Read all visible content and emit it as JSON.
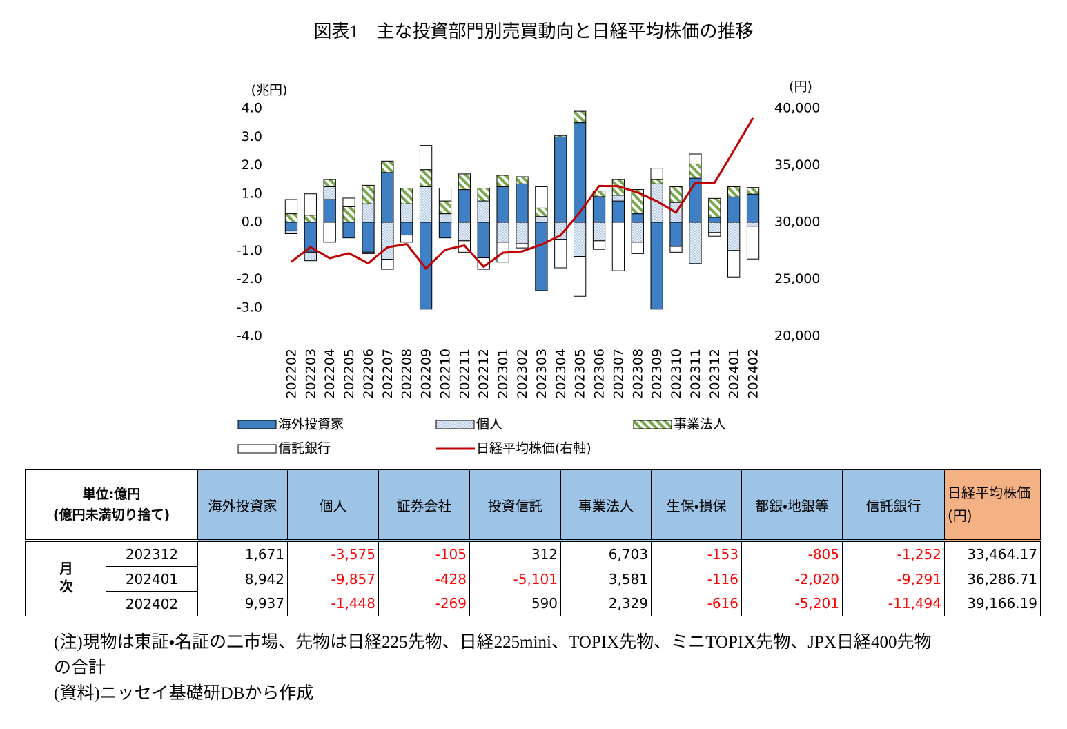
{
  "chart_data": {
    "type": "bar",
    "stacked": true,
    "title": "図表1　主な投資部門別売買動向と日経平均株価の推移",
    "y_label": "(兆円)",
    "y2_label": "(円)",
    "categories": [
      "202202",
      "202203",
      "202204",
      "202205",
      "202206",
      "202207",
      "202208",
      "202209",
      "202210",
      "202211",
      "202212",
      "202301",
      "202302",
      "202303",
      "202304",
      "202305",
      "202306",
      "202307",
      "202308",
      "202309",
      "202310",
      "202311",
      "202312",
      "202401",
      "202402"
    ],
    "series": [
      {
        "name": "海外投資家",
        "color": "#3f7fc4",
        "pattern": "solid",
        "values": [
          -0.3,
          -1.05,
          0.8,
          -0.55,
          -1.05,
          1.75,
          -0.45,
          -3.05,
          -0.55,
          1.15,
          -1.25,
          1.25,
          1.35,
          -2.4,
          3.0,
          3.5,
          0.9,
          0.75,
          0.3,
          -3.05,
          -0.85,
          1.55,
          0.17,
          0.89,
          0.99
        ]
      },
      {
        "name": "個人",
        "color": "#7fa7d6",
        "pattern": "dots",
        "values": [
          -0.1,
          -0.3,
          0.45,
          0.0,
          0.65,
          -1.3,
          0.65,
          1.25,
          0.3,
          -0.65,
          0.75,
          -0.7,
          -0.75,
          0.2,
          -0.6,
          -1.2,
          -0.65,
          0.2,
          -0.7,
          1.35,
          0.7,
          -1.45,
          -0.36,
          -0.99,
          -0.14
        ]
      },
      {
        "name": "事業法人",
        "color": "#77a849",
        "pattern": "hatch",
        "values": [
          0.3,
          0.25,
          0.25,
          0.55,
          0.65,
          0.4,
          0.55,
          0.6,
          0.45,
          0.55,
          0.45,
          0.4,
          0.25,
          0.3,
          0.05,
          0.4,
          0.2,
          0.55,
          0.85,
          0.15,
          0.55,
          0.5,
          0.67,
          0.36,
          0.23
        ]
      },
      {
        "name": "信託銀行",
        "color": "#ffffff",
        "pattern": "solid",
        "values": [
          0.5,
          0.75,
          -0.7,
          0.3,
          -0.05,
          -0.35,
          -0.25,
          0.85,
          0.45,
          -0.4,
          -0.4,
          -0.7,
          -0.15,
          0.75,
          -1.0,
          -1.4,
          -0.3,
          -1.7,
          -0.4,
          0.4,
          -0.2,
          0.35,
          -0.13,
          -0.93,
          -1.15
        ]
      },
      {
        "name": "日経平均株価(右軸)",
        "color": "#c00000",
        "type": "line",
        "axis": "y2",
        "values": [
          26527,
          27821,
          26848,
          27280,
          26393,
          27802,
          28092,
          25937,
          27587,
          27969,
          26095,
          27327,
          27446,
          28041,
          28856,
          30888,
          33189,
          33172,
          32619,
          31858,
          30859,
          33487,
          33464.17,
          36286.71,
          39166.19
        ]
      }
    ],
    "ylim": [
      -4,
      4
    ],
    "yticks": [
      {
        "value": -4,
        "label": "-4.0"
      },
      {
        "value": -3,
        "label": "-3.0"
      },
      {
        "value": -2,
        "label": "-2.0"
      },
      {
        "value": -1,
        "label": "-1.0"
      },
      {
        "value": 0,
        "label": "0.0"
      },
      {
        "value": 1,
        "label": "1.0"
      },
      {
        "value": 2,
        "label": "2.0"
      },
      {
        "value": 3,
        "label": "3.0"
      },
      {
        "value": 4,
        "label": "4.0"
      }
    ],
    "y2lim": [
      20000,
      40000
    ],
    "y2ticks": [
      {
        "value": 20000,
        "label": "20,000"
      },
      {
        "value": 25000,
        "label": "25,000"
      },
      {
        "value": 30000,
        "label": "30,000"
      },
      {
        "value": 35000,
        "label": "35,000"
      },
      {
        "value": 40000,
        "label": "40,000"
      }
    ],
    "grid": false
  },
  "table": {
    "corner": [
      "単位:億円",
      "(億円未満切り捨て)"
    ],
    "header": [
      "海外投資家",
      "個人",
      "証券会社",
      "投資信託",
      "事業法人",
      "生保・損保",
      "都銀・地銀等",
      "信託銀行",
      "日経平均株価(円)"
    ],
    "row_group": "月次",
    "rows": [
      [
        "202312",
        "1,671",
        "-3,575",
        "-105",
        "312",
        "6,703",
        "-153",
        "-805",
        "-1,252",
        "33,464.17"
      ],
      [
        "202401",
        "8,942",
        "-9,857",
        "-428",
        "-5,101",
        "3,581",
        "-116",
        "-2,020",
        "-9,291",
        "36,286.71"
      ],
      [
        "202402",
        "9,937",
        "-1,448",
        "-269",
        "590",
        "2,329",
        "-616",
        "-5,201",
        "-11,494",
        "39,166.19"
      ]
    ]
  },
  "notes": [
    "(注)現物は東証・名証の二市場、先物は日経225先物、日経225mini、TOPIX先物、ミニTOPIX先物、JPX日経400先物の合計",
    "(資料)ニッセイ基礎研DBから作成"
  ]
}
